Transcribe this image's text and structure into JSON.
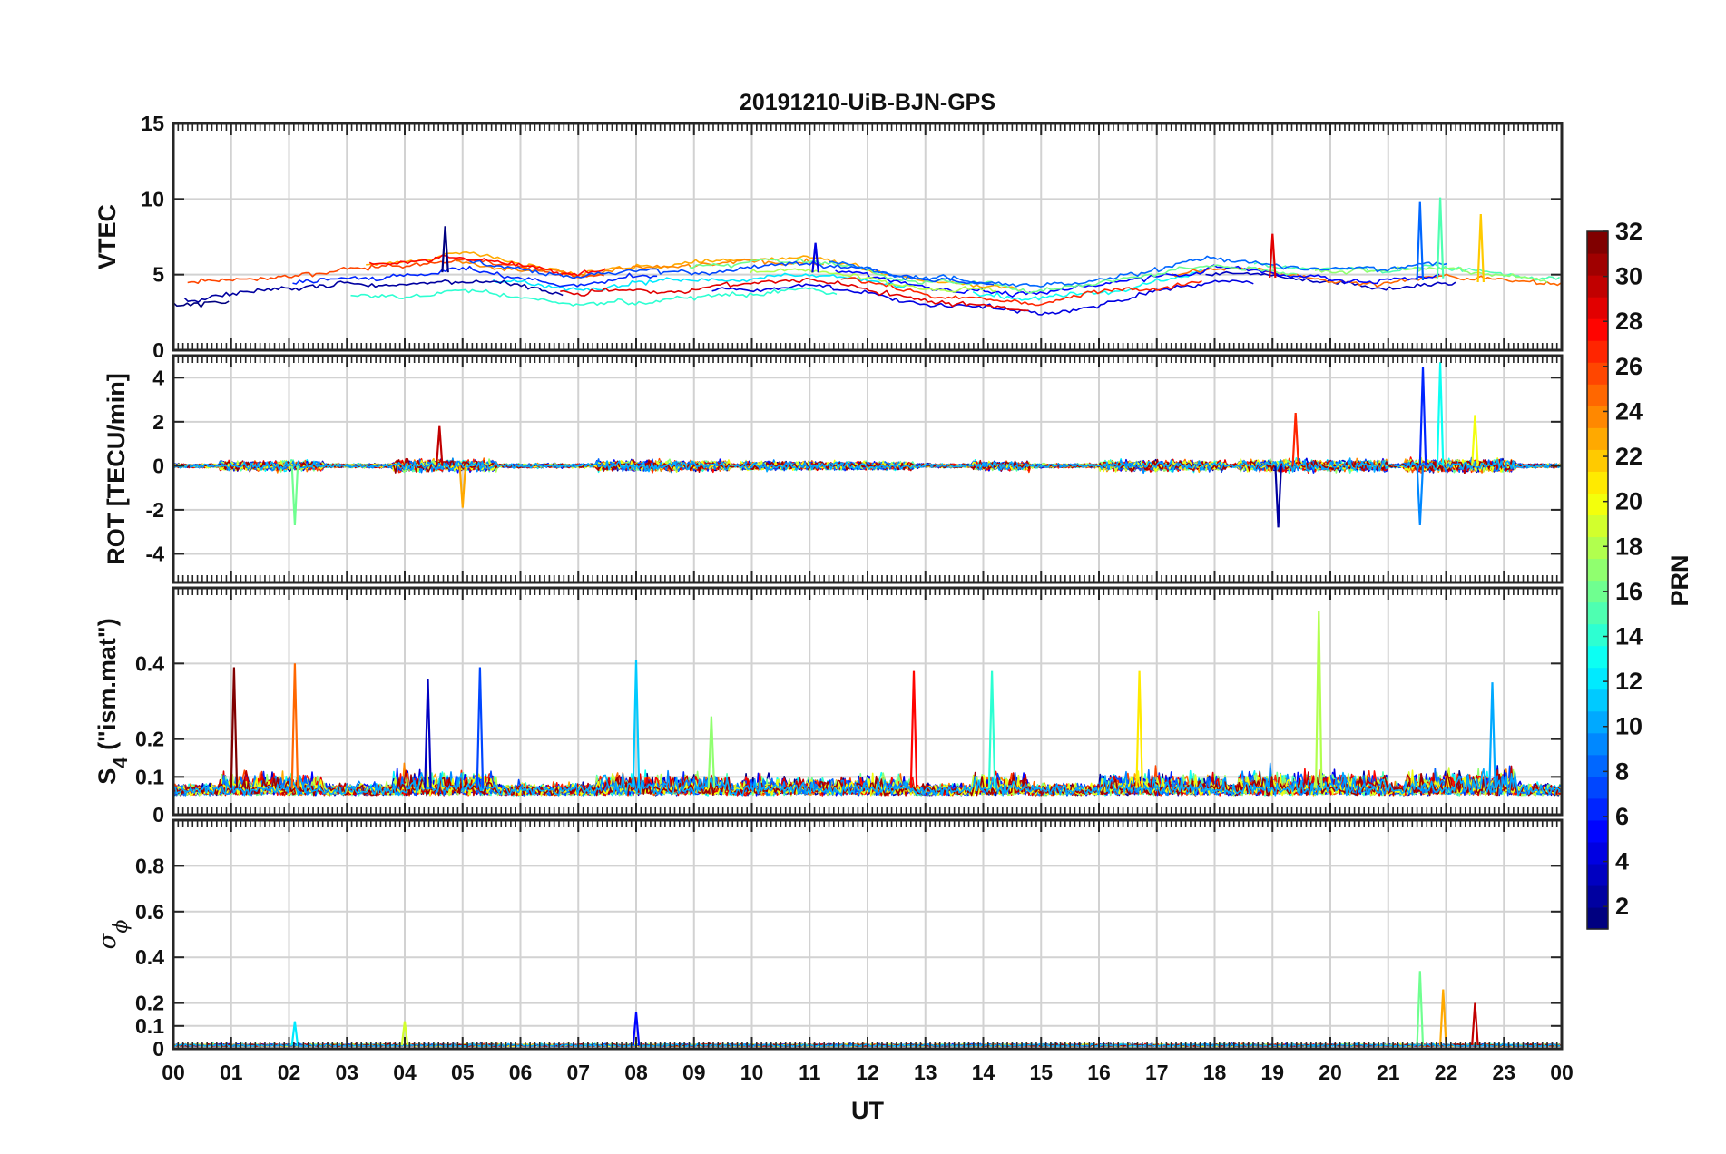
{
  "chart_data": {
    "type": "line",
    "title": "20191210-UiB-BJN-GPS",
    "xlabel": "UT",
    "x_ticks": [
      "00",
      "01",
      "02",
      "03",
      "04",
      "05",
      "06",
      "07",
      "08",
      "09",
      "10",
      "11",
      "12",
      "13",
      "14",
      "15",
      "16",
      "17",
      "18",
      "19",
      "20",
      "21",
      "22",
      "23",
      "00"
    ],
    "xlim_hours": [
      0,
      24
    ],
    "colorbar": {
      "label": "PRN",
      "ticks": [
        "2",
        "4",
        "6",
        "8",
        "10",
        "12",
        "14",
        "16",
        "18",
        "20",
        "22",
        "24",
        "26",
        "28",
        "30",
        "32"
      ],
      "range": [
        1,
        32
      ],
      "colormap": "jet"
    },
    "panels": [
      {
        "id": "vtec",
        "ylabel": "VTEC",
        "ylim": [
          0,
          15
        ],
        "y_ticks": [
          "0",
          "5",
          "10",
          "15"
        ],
        "y_tick_values": [
          0,
          5,
          10,
          15
        ],
        "baseline_by_hour": [
          [
            0,
            3.8
          ],
          [
            1,
            3.9
          ],
          [
            2,
            4.1
          ],
          [
            3,
            4.8
          ],
          [
            4,
            4.8
          ],
          [
            5,
            5.3
          ],
          [
            6,
            4.8
          ],
          [
            7,
            4.2
          ],
          [
            8,
            4.6
          ],
          [
            9,
            4.7
          ],
          [
            10,
            5.0
          ],
          [
            11,
            5.2
          ],
          [
            12,
            4.6
          ],
          [
            13,
            3.9
          ],
          [
            14,
            3.7
          ],
          [
            15,
            3.3
          ],
          [
            16,
            3.9
          ],
          [
            17,
            4.6
          ],
          [
            18,
            5.3
          ],
          [
            19,
            4.8
          ],
          [
            20,
            4.5
          ],
          [
            21,
            4.4
          ],
          [
            22,
            4.8
          ],
          [
            23,
            4.3
          ],
          [
            24,
            3.9
          ]
        ],
        "peaks": [
          [
            4.7,
            8.2
          ],
          [
            21.55,
            9.8
          ],
          [
            21.9,
            10.1
          ],
          [
            22.6,
            9.0
          ],
          [
            19.0,
            7.7
          ],
          [
            11.1,
            7.1
          ]
        ]
      },
      {
        "id": "rot",
        "ylabel": "ROT [TECU/min]",
        "ylim": [
          -5.3,
          5
        ],
        "y_ticks": [
          "-4",
          "-2",
          "0",
          "2",
          "4"
        ],
        "y_tick_values": [
          -4,
          -2,
          0,
          2,
          4
        ],
        "peaks": [
          [
            21.6,
            4.5
          ],
          [
            21.9,
            4.7
          ],
          [
            22.5,
            2.3
          ],
          [
            19.4,
            2.4
          ],
          [
            19.1,
            -2.8
          ],
          [
            21.55,
            -2.7
          ],
          [
            2.1,
            -2.7
          ],
          [
            5.0,
            -1.9
          ],
          [
            4.6,
            1.8
          ]
        ]
      },
      {
        "id": "s4",
        "ylabel": "S",
        "ylabel_subscript": "4",
        "ylabel_suffix": " (\"ism.mat\")",
        "ylim": [
          0,
          0.6
        ],
        "y_ticks": [
          "0",
          "0.1",
          "0.2",
          "0.4"
        ],
        "y_tick_values": [
          0,
          0.1,
          0.2,
          0.4
        ],
        "peaks": [
          [
            8.0,
            0.41
          ],
          [
            19.8,
            0.54
          ],
          [
            2.1,
            0.4
          ],
          [
            1.05,
            0.39
          ],
          [
            5.3,
            0.39
          ],
          [
            14.15,
            0.38
          ],
          [
            16.7,
            0.38
          ],
          [
            12.8,
            0.38
          ],
          [
            4.4,
            0.36
          ],
          [
            22.8,
            0.35
          ],
          [
            9.3,
            0.26
          ]
        ]
      },
      {
        "id": "sigma_phi",
        "ylabel": "σ",
        "ylabel_subscript": "ϕ",
        "ylim": [
          0,
          1
        ],
        "y_ticks": [
          "0",
          "0.1",
          "0.2",
          "0.4",
          "0.6",
          "0.8"
        ],
        "y_tick_values": [
          0,
          0.1,
          0.2,
          0.4,
          0.6,
          0.8
        ],
        "peaks": [
          [
            21.55,
            0.34
          ],
          [
            21.95,
            0.26
          ],
          [
            22.5,
            0.2
          ],
          [
            8.0,
            0.16
          ],
          [
            2.1,
            0.12
          ],
          [
            4.0,
            0.12
          ]
        ]
      }
    ],
    "grid": true
  }
}
